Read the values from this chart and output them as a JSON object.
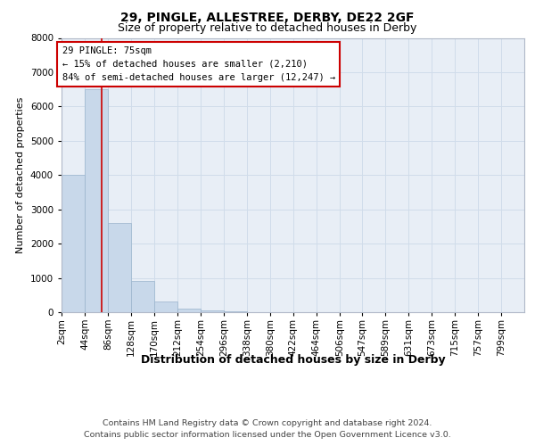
{
  "title1": "29, PINGLE, ALLESTREE, DERBY, DE22 2GF",
  "title2": "Size of property relative to detached houses in Derby",
  "xlabel": "Distribution of detached houses by size in Derby",
  "ylabel": "Number of detached properties",
  "footnote1": "Contains HM Land Registry data © Crown copyright and database right 2024.",
  "footnote2": "Contains public sector information licensed under the Open Government Licence v3.0.",
  "annotation_line1": "29 PINGLE: 75sqm",
  "annotation_line2": "← 15% of detached houses are smaller (2,210)",
  "annotation_line3": "84% of semi-detached houses are larger (12,247) →",
  "bar_edges": [
    2,
    44,
    86,
    128,
    170,
    212,
    254,
    296,
    338,
    380,
    422,
    464,
    506,
    547,
    589,
    631,
    673,
    715,
    757,
    799,
    841
  ],
  "bar_heights": [
    4000,
    6500,
    2600,
    900,
    300,
    100,
    50,
    30,
    10,
    5,
    2,
    1,
    0,
    0,
    0,
    0,
    0,
    0,
    0,
    0
  ],
  "bar_color": "#c8d8ea",
  "bar_edge_color": "#9ab4cc",
  "grid_color": "#d0dcea",
  "bg_color": "#e8eef6",
  "red_line_color": "#cc0000",
  "red_line_x": 75,
  "annotation_bg": "#ffffff",
  "annotation_edge": "#cc0000",
  "ylim": [
    0,
    8000
  ],
  "yticks": [
    0,
    1000,
    2000,
    3000,
    4000,
    5000,
    6000,
    7000,
    8000
  ],
  "title1_fontsize": 10,
  "title2_fontsize": 9,
  "xlabel_fontsize": 9,
  "ylabel_fontsize": 8,
  "tick_fontsize": 7.5,
  "annotation_fontsize": 7.5,
  "footnote_fontsize": 6.8
}
